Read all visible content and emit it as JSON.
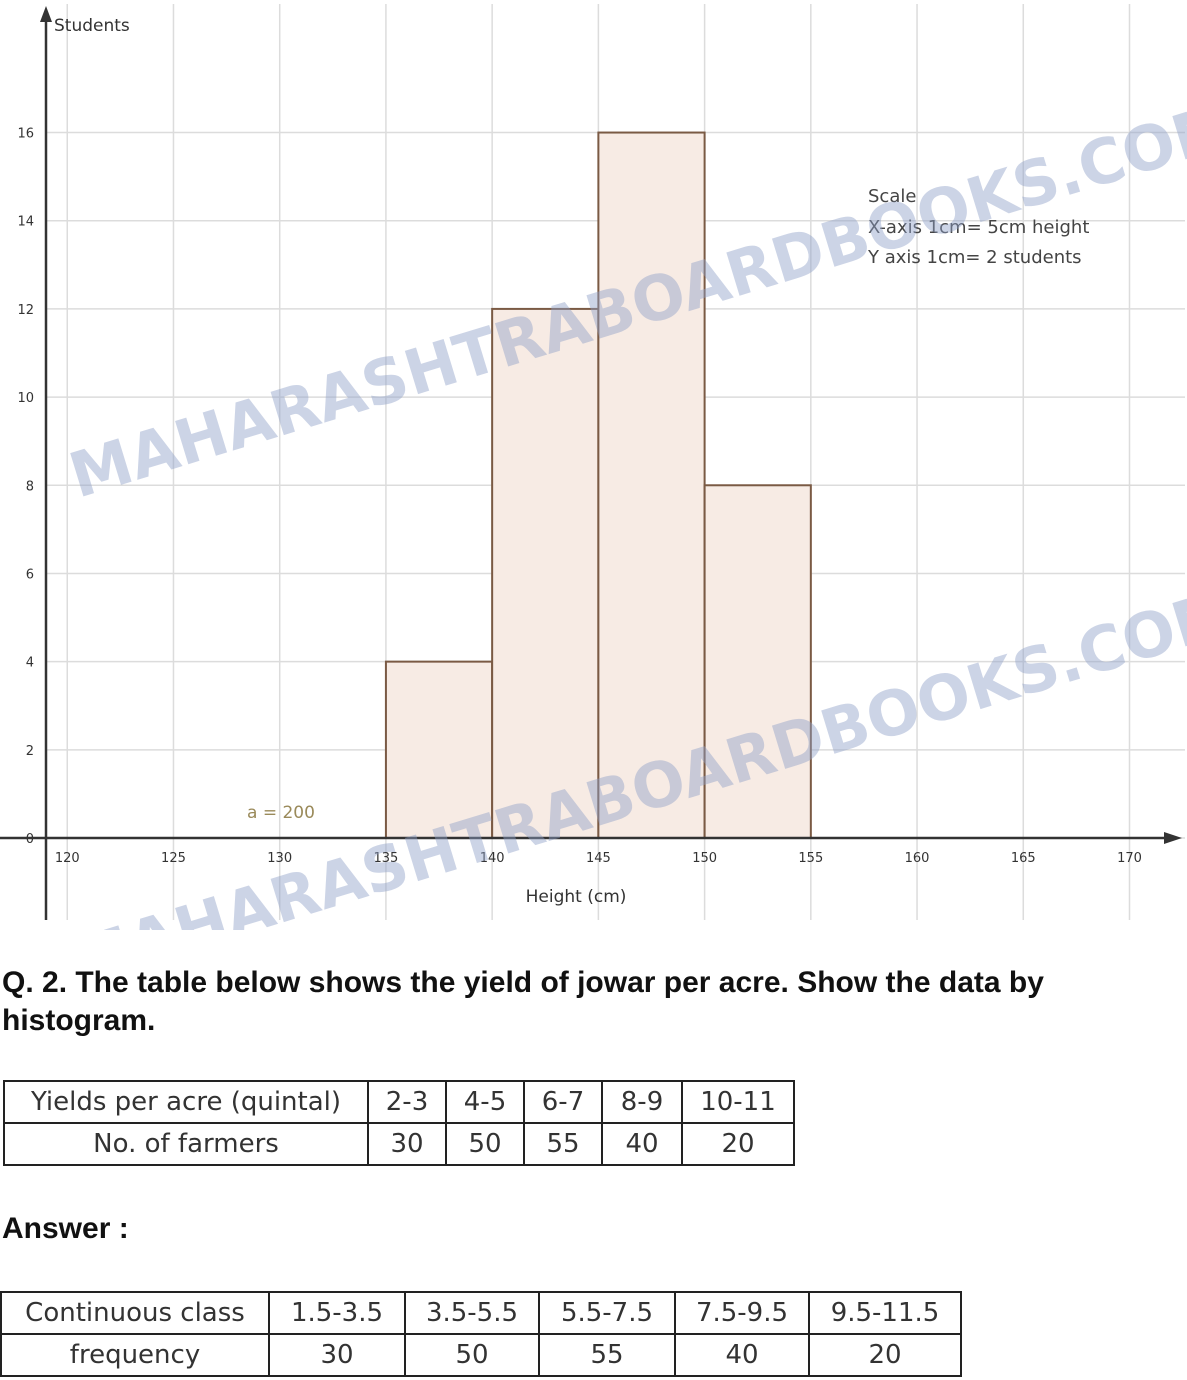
{
  "chart_data": {
    "type": "bar",
    "subtype": "histogram",
    "ylabel": "Students",
    "xlabel": "Height (cm)",
    "bins": [
      {
        "start": 135,
        "end": 140,
        "value": 4
      },
      {
        "start": 140,
        "end": 145,
        "value": 12
      },
      {
        "start": 145,
        "end": 150,
        "value": 16
      },
      {
        "start": 150,
        "end": 155,
        "value": 8
      }
    ],
    "x_ticks": [
      120,
      125,
      130,
      135,
      140,
      145,
      150,
      155,
      160,
      165,
      170
    ],
    "y_ticks": [
      0,
      2,
      4,
      6,
      8,
      10,
      12,
      14,
      16
    ],
    "xlim": [
      119,
      172
    ],
    "ylim": [
      0,
      17.6
    ],
    "grid": true,
    "scale_note": {
      "title": "Scale",
      "x_axis": "X-axis  1cm= 5cm height",
      "y_axis": "Y axis  1cm= 2 students"
    },
    "annotation": "a = 200",
    "colors": {
      "bar_fill": "#f7ebe4",
      "bar_stroke": "#7a5a44",
      "grid": "#dcdcdc",
      "axis": "#333333"
    }
  },
  "watermark": "MAHARASHTRABOARDBOOKS.COM",
  "question": "Q. 2. The table below shows the yield of jowar per acre. Show the data by histogram.",
  "table1": {
    "header_label": "Yields per acre (quintal)",
    "classes": [
      "2-3",
      "4-5",
      "6-7",
      "8-9",
      "10-11"
    ],
    "row_label": "No. of farmers",
    "values": [
      "30",
      "50",
      "55",
      "40",
      "20"
    ]
  },
  "answer_label": "Answer :",
  "table2": {
    "header_label": "Continuous class",
    "classes": [
      "1.5-3.5",
      "3.5-5.5",
      "5.5-7.5",
      "7.5-9.5",
      "9.5-11.5"
    ],
    "row_label": "frequency",
    "values": [
      "30",
      "50",
      "55",
      "40",
      "20"
    ]
  }
}
